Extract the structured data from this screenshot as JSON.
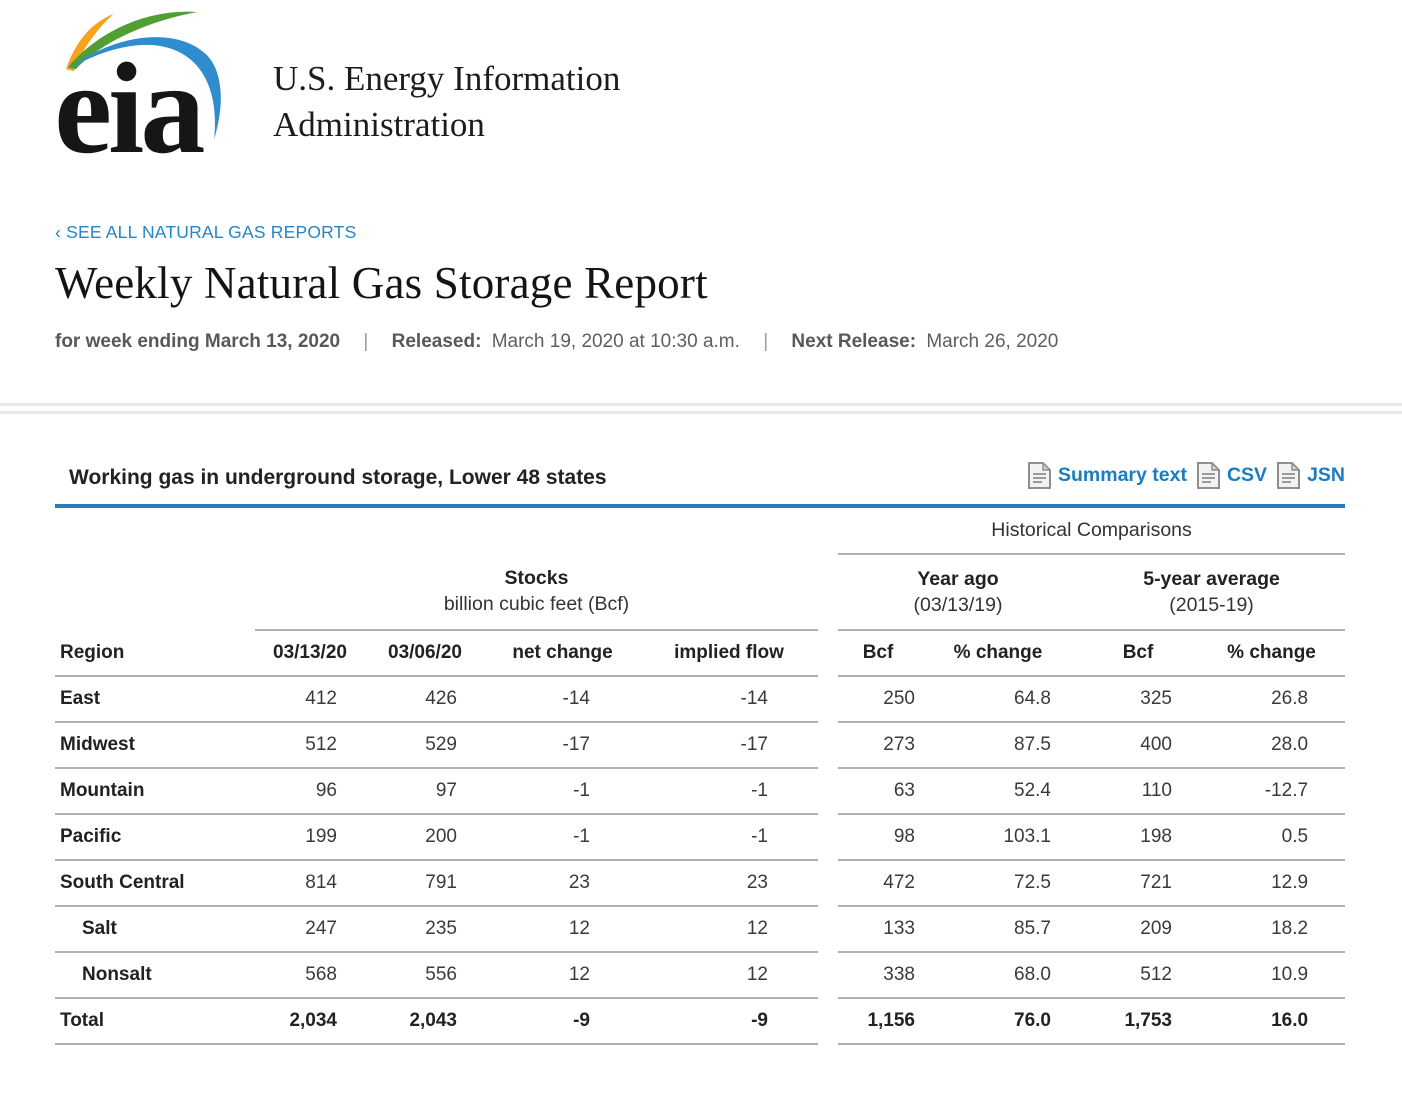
{
  "header": {
    "logo_text": "eia",
    "agency_line1": "U.S. Energy Information",
    "agency_line2": "Administration"
  },
  "breadcrumb": {
    "label": "‹ SEE ALL NATURAL GAS REPORTS"
  },
  "page_title": "Weekly Natural Gas Storage Report",
  "release_info": {
    "week_ending": "for week ending March 13, 2020",
    "separator": "|",
    "released_label": "Released:",
    "released_value": "March 19, 2020 at 10:30 a.m.",
    "next_release_label": "Next Release:",
    "next_release_value": "March 26, 2020"
  },
  "table": {
    "title": "Working gas in underground storage, Lower 48 states",
    "links": [
      {
        "label": "Summary text"
      },
      {
        "label": "CSV"
      },
      {
        "label": "JSN"
      }
    ],
    "historical_comparisons_label": "Historical Comparisons",
    "groups": {
      "stocks": {
        "title": "Stocks",
        "subtitle": "billion cubic feet (Bcf)"
      },
      "year_ago": {
        "title": "Year ago",
        "subtitle": "(03/13/19)"
      },
      "five_year": {
        "title": "5-year average",
        "subtitle": "(2015-19)"
      }
    },
    "columns": [
      "Region",
      "03/13/20",
      "03/06/20",
      "net change",
      "implied flow",
      "Bcf",
      "% change",
      "Bcf",
      "% change"
    ],
    "rows": [
      {
        "region": "East",
        "indent": false,
        "bold": false,
        "values": [
          "412",
          "426",
          "-14",
          "-14",
          "250",
          "64.8",
          "325",
          "26.8"
        ]
      },
      {
        "region": "Midwest",
        "indent": false,
        "bold": false,
        "values": [
          "512",
          "529",
          "-17",
          "-17",
          "273",
          "87.5",
          "400",
          "28.0"
        ]
      },
      {
        "region": "Mountain",
        "indent": false,
        "bold": false,
        "values": [
          "96",
          "97",
          "-1",
          "-1",
          "63",
          "52.4",
          "110",
          "-12.7"
        ]
      },
      {
        "region": "Pacific",
        "indent": false,
        "bold": false,
        "values": [
          "199",
          "200",
          "-1",
          "-1",
          "98",
          "103.1",
          "198",
          "0.5"
        ]
      },
      {
        "region": "South Central",
        "indent": false,
        "bold": false,
        "values": [
          "814",
          "791",
          "23",
          "23",
          "472",
          "72.5",
          "721",
          "12.9"
        ]
      },
      {
        "region": "Salt",
        "indent": true,
        "bold": false,
        "values": [
          "247",
          "235",
          "12",
          "12",
          "133",
          "85.7",
          "209",
          "18.2"
        ]
      },
      {
        "region": "Nonsalt",
        "indent": true,
        "bold": false,
        "values": [
          "568",
          "556",
          "12",
          "12",
          "338",
          "68.0",
          "512",
          "10.9"
        ]
      },
      {
        "region": "Total",
        "indent": false,
        "bold": true,
        "values": [
          "2,034",
          "2,043",
          "-9",
          "-9",
          "1,156",
          "76.0",
          "1,753",
          "16.0"
        ]
      }
    ]
  },
  "colors": {
    "link_blue": "#1b7cc0",
    "breadcrumb_blue": "#2585c6",
    "rule_blue": "#2a7bbb",
    "logo_yellow": "#f5a31a",
    "logo_green": "#519e34",
    "logo_blue": "#2f8dcd",
    "divider_gray": "#e9e9e9",
    "border_gray": "#b1b1b1",
    "text_gray": "#5e5e5e"
  }
}
